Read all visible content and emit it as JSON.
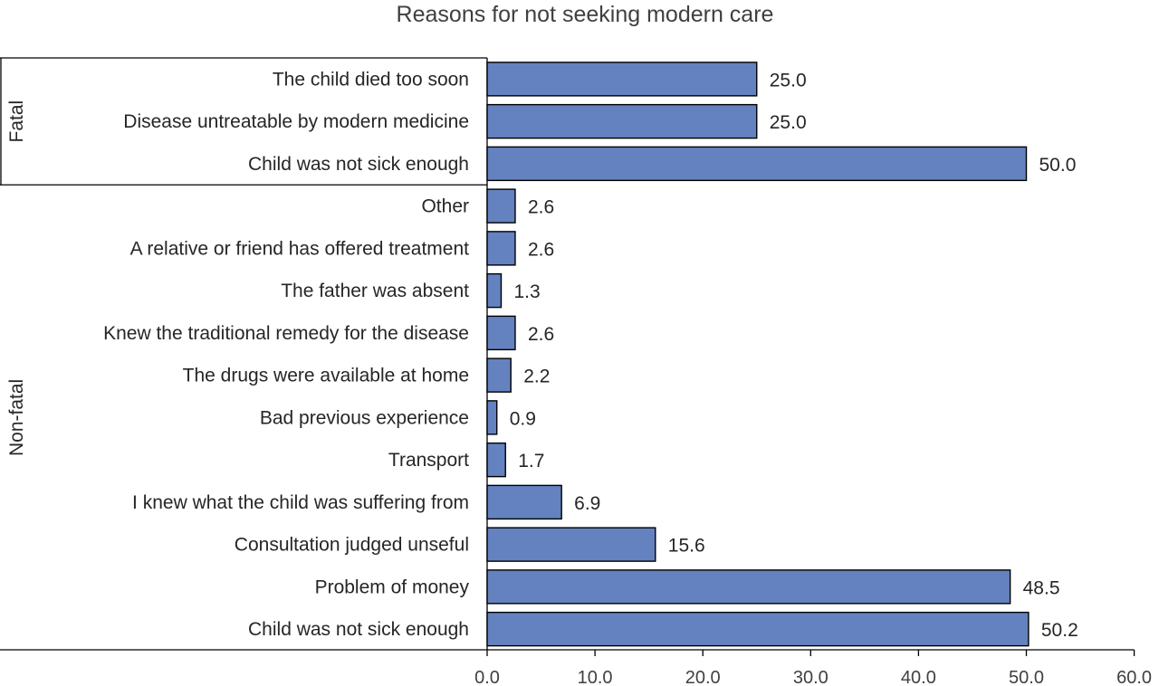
{
  "chart_data": {
    "type": "bar",
    "orientation": "horizontal",
    "title": "Reasons for not seeking modern care",
    "xlim": [
      0,
      60
    ],
    "xticks": [
      "0.0",
      "10.0",
      "20.0",
      "30.0",
      "40.0",
      "50.0",
      "60.0"
    ],
    "tick_values": [
      0,
      10,
      20,
      30,
      40,
      50,
      60
    ],
    "bar_color": "#6482bf",
    "groups": [
      {
        "name": "Fatal",
        "items": [
          {
            "label": "The child died too soon",
            "value": 25.0,
            "value_label": "25.0"
          },
          {
            "label": "Disease untreatable by modern medicine",
            "value": 25.0,
            "value_label": "25.0"
          },
          {
            "label": "Child was not sick enough",
            "value": 50.0,
            "value_label": "50.0"
          }
        ]
      },
      {
        "name": "Non-fatal",
        "items": [
          {
            "label": "Other",
            "value": 2.6,
            "value_label": "2.6"
          },
          {
            "label": "A relative or friend has offered treatment",
            "value": 2.6,
            "value_label": "2.6"
          },
          {
            "label": "The father was absent",
            "value": 1.3,
            "value_label": "1.3"
          },
          {
            "label": "Knew the traditional remedy for the disease",
            "value": 2.6,
            "value_label": "2.6"
          },
          {
            "label": "The drugs were available at home",
            "value": 2.2,
            "value_label": "2.2"
          },
          {
            "label": "Bad previous experience",
            "value": 0.9,
            "value_label": "0.9"
          },
          {
            "label": "Transport",
            "value": 1.7,
            "value_label": "1.7"
          },
          {
            "label": "I knew what the child was suffering from",
            "value": 6.9,
            "value_label": "6.9"
          },
          {
            "label": "Consultation judged unseful",
            "value": 15.6,
            "value_label": "15.6"
          },
          {
            "label": "Problem of money",
            "value": 48.5,
            "value_label": "48.5"
          },
          {
            "label": "Child was not sick enough",
            "value": 50.2,
            "value_label": "50.2"
          }
        ]
      }
    ]
  }
}
